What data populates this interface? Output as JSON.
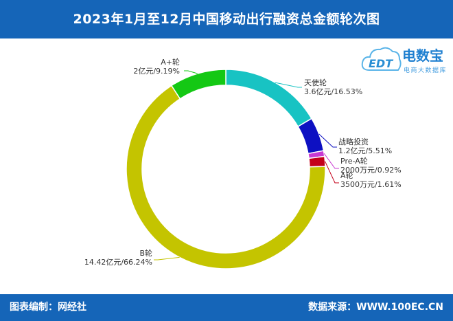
{
  "header": {
    "title": "2023年1月至12月中国移动出行融资总金额轮次图"
  },
  "footer": {
    "left": "图表编制：网经社",
    "right": "数据来源：WWW.100EC.CN"
  },
  "logo": {
    "main": "电数宝",
    "sub": "电商大数据库",
    "badge": "EDT"
  },
  "colors": {
    "header_bg": "#1565b8",
    "accent": "#1565b8"
  },
  "chart_data": {
    "type": "pie",
    "donut": true,
    "title": "2023年1月至12月中国移动出行融资总金额轮次图",
    "start_angle_deg": 0,
    "slices": [
      {
        "name": "天使轮",
        "value": 16.53,
        "amount": "3.6亿元",
        "label": "3.6亿元/16.53%",
        "color": "#18c3c3"
      },
      {
        "name": "战略投资",
        "value": 5.51,
        "amount": "1.2亿元",
        "label": "1.2亿元/5.51%",
        "color": "#0d10c2"
      },
      {
        "name": "Pre-A轮",
        "value": 0.92,
        "amount": "2000万元",
        "label": "2000万元/0.92%",
        "color": "#c83ad2"
      },
      {
        "name": "A轮",
        "value": 1.61,
        "amount": "3500万元",
        "label": "3500万元/1.61%",
        "color": "#c4001a"
      },
      {
        "name": "B轮",
        "value": 66.24,
        "amount": "14.42亿元",
        "label": "14.42亿元/66.24%",
        "color": "#c4c400"
      },
      {
        "name": "A+轮",
        "value": 9.19,
        "amount": "2亿元",
        "label": "2亿元/9.19%",
        "color": "#14c814"
      }
    ]
  }
}
